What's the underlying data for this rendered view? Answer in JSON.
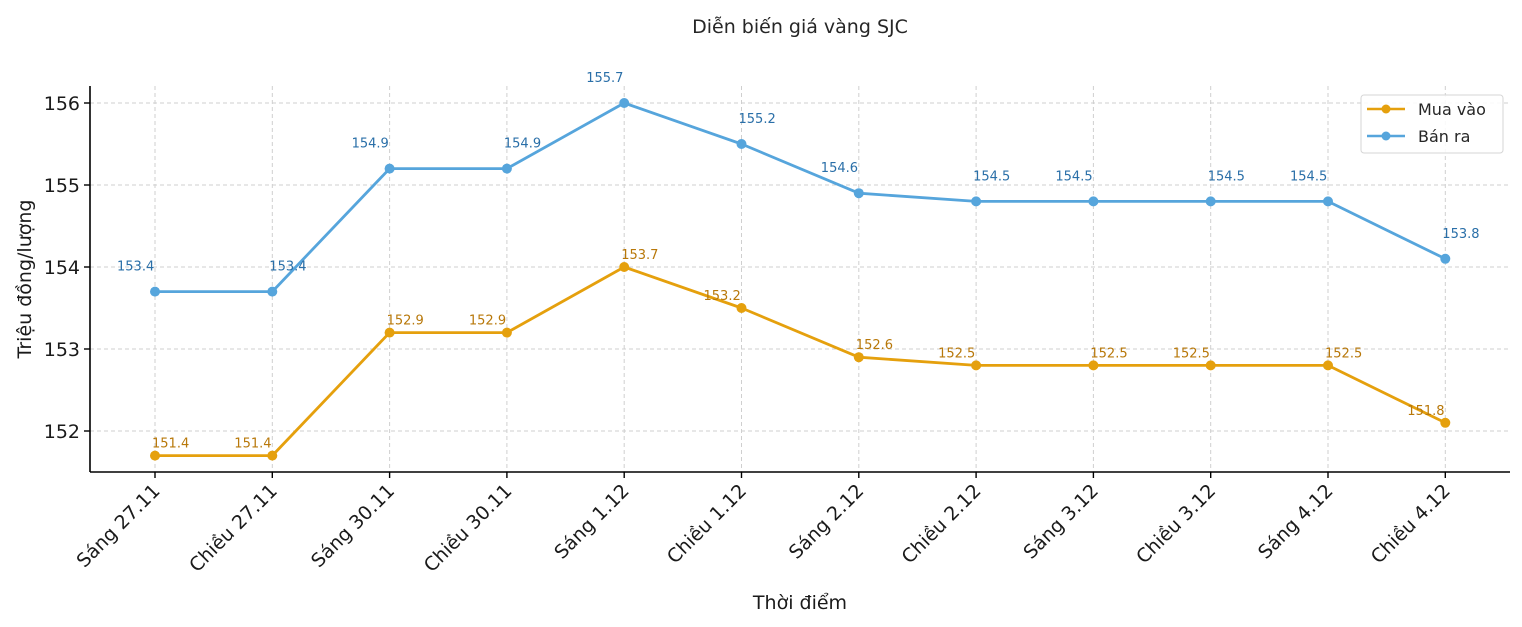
{
  "chart_data": {
    "type": "line",
    "title": "Diễn biến giá vàng SJC",
    "xlabel": "Thời điểm",
    "ylabel": "Triệu đồng/lượng",
    "ylim": [
      151.5,
      156.2
    ],
    "yticks": [
      152,
      153,
      154,
      155,
      156
    ],
    "grid": true,
    "legend_position": "upper right",
    "categories": [
      "Sáng 27.11",
      "Chiều 27.11",
      "Sáng 30.11",
      "Chiều 30.11",
      "Sáng 1.12",
      "Chiều 1.12",
      "Sáng 2.12",
      "Chiều 2.12",
      "Sáng 3.12",
      "Chiều 3.12",
      "Sáng 4.12",
      "Chiều 4.12"
    ],
    "series": [
      {
        "name": "Mua vào",
        "color": "#E5A00D",
        "label_color": "#B8780A",
        "values": [
          151.4,
          151.4,
          152.9,
          152.9,
          153.7,
          153.2,
          152.6,
          152.5,
          152.5,
          152.5,
          152.5,
          151.8
        ],
        "plotted_values": [
          151.7,
          151.7,
          153.2,
          153.2,
          154.0,
          153.5,
          152.9,
          152.8,
          152.8,
          152.8,
          152.8,
          152.1
        ]
      },
      {
        "name": "Bán ra",
        "color": "#56A5DC",
        "label_color": "#2A6FA8",
        "values": [
          153.4,
          153.4,
          154.9,
          154.9,
          155.7,
          155.2,
          154.6,
          154.5,
          154.5,
          154.5,
          154.5,
          153.8
        ],
        "plotted_values": [
          153.7,
          153.7,
          155.2,
          155.2,
          156.0,
          155.5,
          154.9,
          154.8,
          154.8,
          154.8,
          154.8,
          154.1
        ]
      }
    ]
  }
}
